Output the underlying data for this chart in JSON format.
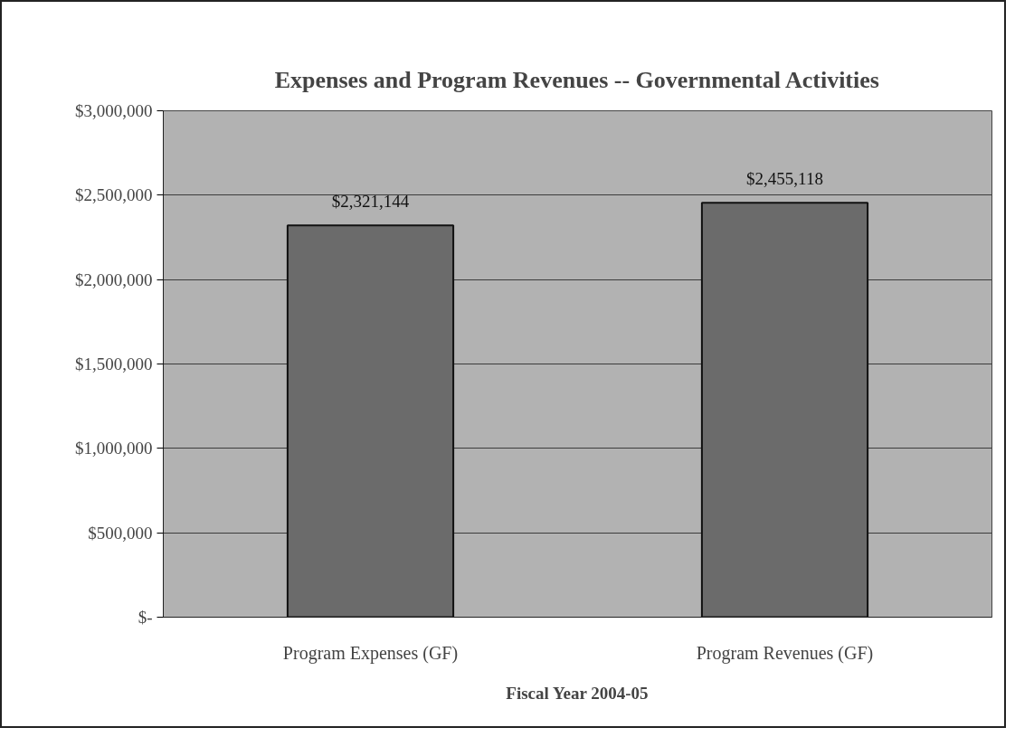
{
  "chart_data": {
    "type": "bar",
    "title": "Expenses and Program Revenues -- Governmental Activities",
    "xlabel": "Fiscal Year 2004-05",
    "categories": [
      "Program Expenses (GF)",
      "Program Revenues (GF)"
    ],
    "values": [
      2321144,
      2455118
    ],
    "value_labels": [
      "$2,321,144",
      "$2,455,118"
    ],
    "color": "#6b6b6b",
    "ylim": [
      0,
      3000000
    ],
    "yticks": [
      {
        "value": 0,
        "label": "$-"
      },
      {
        "value": 500000,
        "label": "$500,000"
      },
      {
        "value": 1000000,
        "label": "$1,000,000"
      },
      {
        "value": 1500000,
        "label": "$1,500,000"
      },
      {
        "value": 2000000,
        "label": "$2,000,000"
      },
      {
        "value": 2500000,
        "label": "$2,500,000"
      },
      {
        "value": 3000000,
        "label": "$3,000,000"
      }
    ],
    "grid": "y"
  }
}
